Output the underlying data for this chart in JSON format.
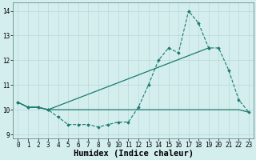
{
  "xlabel": "Humidex (Indice chaleur)",
  "x": [
    0,
    1,
    2,
    3,
    4,
    5,
    6,
    7,
    8,
    9,
    10,
    11,
    12,
    13,
    14,
    15,
    16,
    17,
    18,
    19,
    20,
    21,
    22,
    23
  ],
  "line1_y": [
    10.3,
    10.1,
    10.1,
    10.0,
    9.7,
    9.4,
    9.4,
    9.4,
    9.3,
    9.4,
    9.5,
    9.5,
    10.1,
    11.0,
    12.0,
    12.5,
    12.3,
    14.0,
    13.5,
    12.5,
    12.5,
    11.6,
    10.4,
    9.9
  ],
  "line2_y": [
    10.3,
    10.1,
    10.1,
    10.0,
    10.0,
    10.0,
    10.0,
    10.0,
    10.0,
    10.0,
    10.0,
    10.0,
    10.0,
    10.0,
    10.0,
    10.0,
    10.0,
    10.0,
    10.0,
    10.0,
    10.0,
    10.0,
    10.0,
    9.9
  ],
  "line3_x": [
    0,
    1,
    2,
    3,
    19
  ],
  "line3_y": [
    10.3,
    10.1,
    10.1,
    10.0,
    12.5
  ],
  "ylim": [
    8.85,
    14.35
  ],
  "yticks": [
    9,
    10,
    11,
    12,
    13,
    14
  ],
  "xticks": [
    0,
    1,
    2,
    3,
    4,
    5,
    6,
    7,
    8,
    9,
    10,
    11,
    12,
    13,
    14,
    15,
    16,
    17,
    18,
    19,
    20,
    21,
    22,
    23
  ],
  "line_color": "#1a7a6e",
  "bg_color": "#d4eeee",
  "grid_color": "#b8d8d8",
  "tick_fontsize": 5.5,
  "label_fontsize": 7.5
}
